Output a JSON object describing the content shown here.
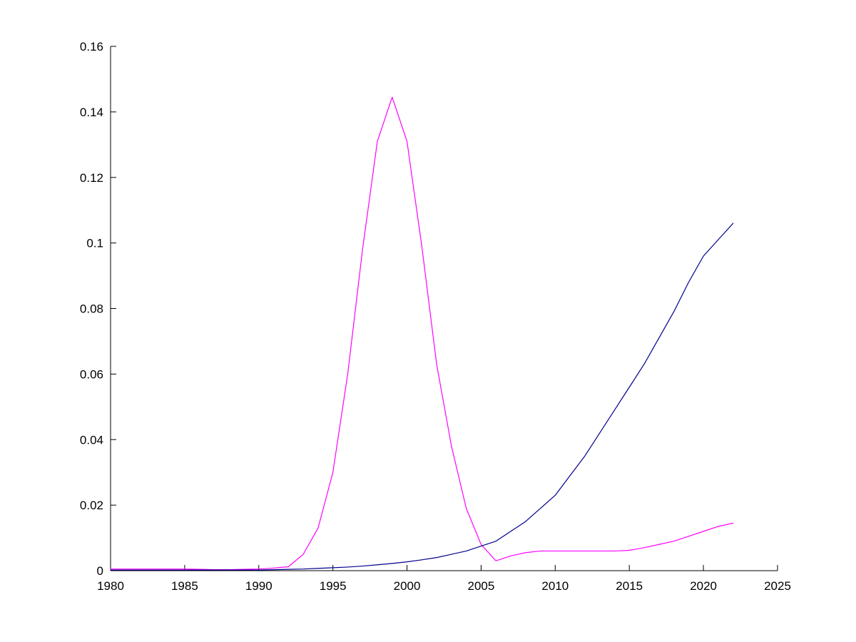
{
  "figure": {
    "background": "#ffffff"
  },
  "chart_data": {
    "type": "line",
    "title": "",
    "xlabel": "",
    "ylabel": "",
    "xlim": [
      1980,
      2025
    ],
    "ylim": [
      0,
      0.16
    ],
    "grid": false,
    "legend": "none",
    "axis_color": "#000000",
    "x_ticks": [
      1980,
      1985,
      1990,
      1995,
      2000,
      2005,
      2010,
      2015,
      2020,
      2025
    ],
    "x_tick_labels": [
      "1980",
      "1985",
      "1990",
      "1995",
      "2000",
      "2005",
      "2010",
      "2015",
      "2020",
      "2025"
    ],
    "y_ticks": [
      0,
      0.02,
      0.04,
      0.06,
      0.08,
      0.1,
      0.12,
      0.14,
      0.16
    ],
    "y_tick_labels": [
      "0",
      "0.02",
      "0.04",
      "0.06",
      "0.08",
      "0.1",
      "0.12",
      "0.14",
      "0.16"
    ],
    "x": [
      1980,
      1981,
      1982,
      1983,
      1984,
      1985,
      1986,
      1987,
      1988,
      1989,
      1990,
      1991,
      1992,
      1993,
      1994,
      1995,
      1996,
      1997,
      1998,
      1999,
      2000,
      2001,
      2002,
      2003,
      2004,
      2005,
      2006,
      2007,
      2008,
      2009,
      2010,
      2011,
      2012,
      2013,
      2014,
      2015,
      2016,
      2017,
      2018,
      2019,
      2020,
      2021,
      2022
    ],
    "series": [
      {
        "name": "series-magenta",
        "color": "#ff00ff",
        "values": [
          0.0005,
          0.0005,
          0.0005,
          0.0005,
          0.0005,
          0.0005,
          0.0004,
          0.0003,
          0.0003,
          0.0004,
          0.0005,
          0.0008,
          0.0012,
          0.005,
          0.013,
          0.03,
          0.06,
          0.098,
          0.131,
          0.1445,
          0.131,
          0.099,
          0.063,
          0.038,
          0.019,
          0.008,
          0.003,
          0.0045,
          0.0055,
          0.006,
          0.006,
          0.006,
          0.006,
          0.006,
          0.006,
          0.0062,
          0.007,
          0.008,
          0.009,
          0.0105,
          0.012,
          0.0135,
          0.0145
        ]
      },
      {
        "name": "series-darkblue",
        "color": "#00008b",
        "values": [
          0.0002,
          0.0002,
          0.0002,
          0.0002,
          0.0002,
          0.0002,
          0.0002,
          0.0002,
          0.0002,
          0.0002,
          0.0002,
          0.0003,
          0.0004,
          0.0005,
          0.0007,
          0.0009,
          0.0011,
          0.0014,
          0.0018,
          0.0022,
          0.0027,
          0.0033,
          0.004,
          0.005,
          0.006,
          0.0075,
          0.009,
          0.012,
          0.015,
          0.019,
          0.023,
          0.029,
          0.035,
          0.042,
          0.049,
          0.056,
          0.063,
          0.071,
          0.079,
          0.088,
          0.096,
          0.101,
          0.106
        ]
      }
    ]
  }
}
